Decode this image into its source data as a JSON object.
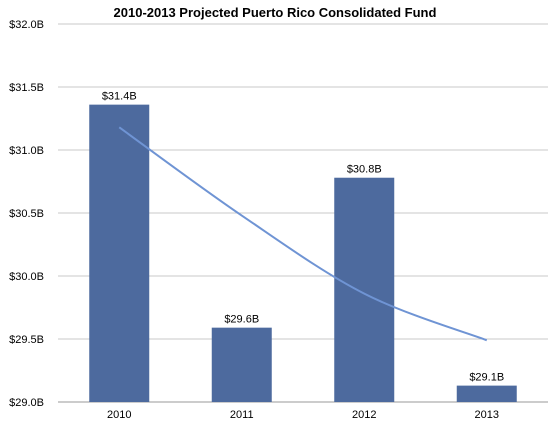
{
  "chart_data": {
    "type": "bar",
    "title": "2010-2013 Projected Puerto Rico Consolidated Fund",
    "xlabel": "",
    "ylabel": "",
    "categories": [
      "2010",
      "2011",
      "2012",
      "2013"
    ],
    "values": [
      31.36,
      29.59,
      30.78,
      29.13
    ],
    "data_labels": [
      "$31.4B",
      "$29.6B",
      "$30.8B",
      "$29.1B"
    ],
    "ylim": [
      29.0,
      32.0
    ],
    "y_ticks": [
      29.0,
      29.5,
      30.0,
      30.5,
      31.0,
      31.5,
      32.0
    ],
    "y_tick_labels": [
      "$29.0B",
      "$29.5B",
      "$30.0B",
      "$30.5B",
      "$31.0B",
      "$31.5B",
      "$32.0B"
    ],
    "grid": true,
    "legend": "none",
    "trendline": {
      "type": "curve",
      "x": [
        "2010",
        "2011",
        "2012",
        "2013"
      ],
      "y": [
        31.18,
        30.48,
        29.86,
        29.49
      ]
    },
    "colors": {
      "bar": "#4d6a9e",
      "trendline": "#6f94d4",
      "grid": "#c8c8c8",
      "axis": "#999999",
      "text": "#000000"
    }
  }
}
